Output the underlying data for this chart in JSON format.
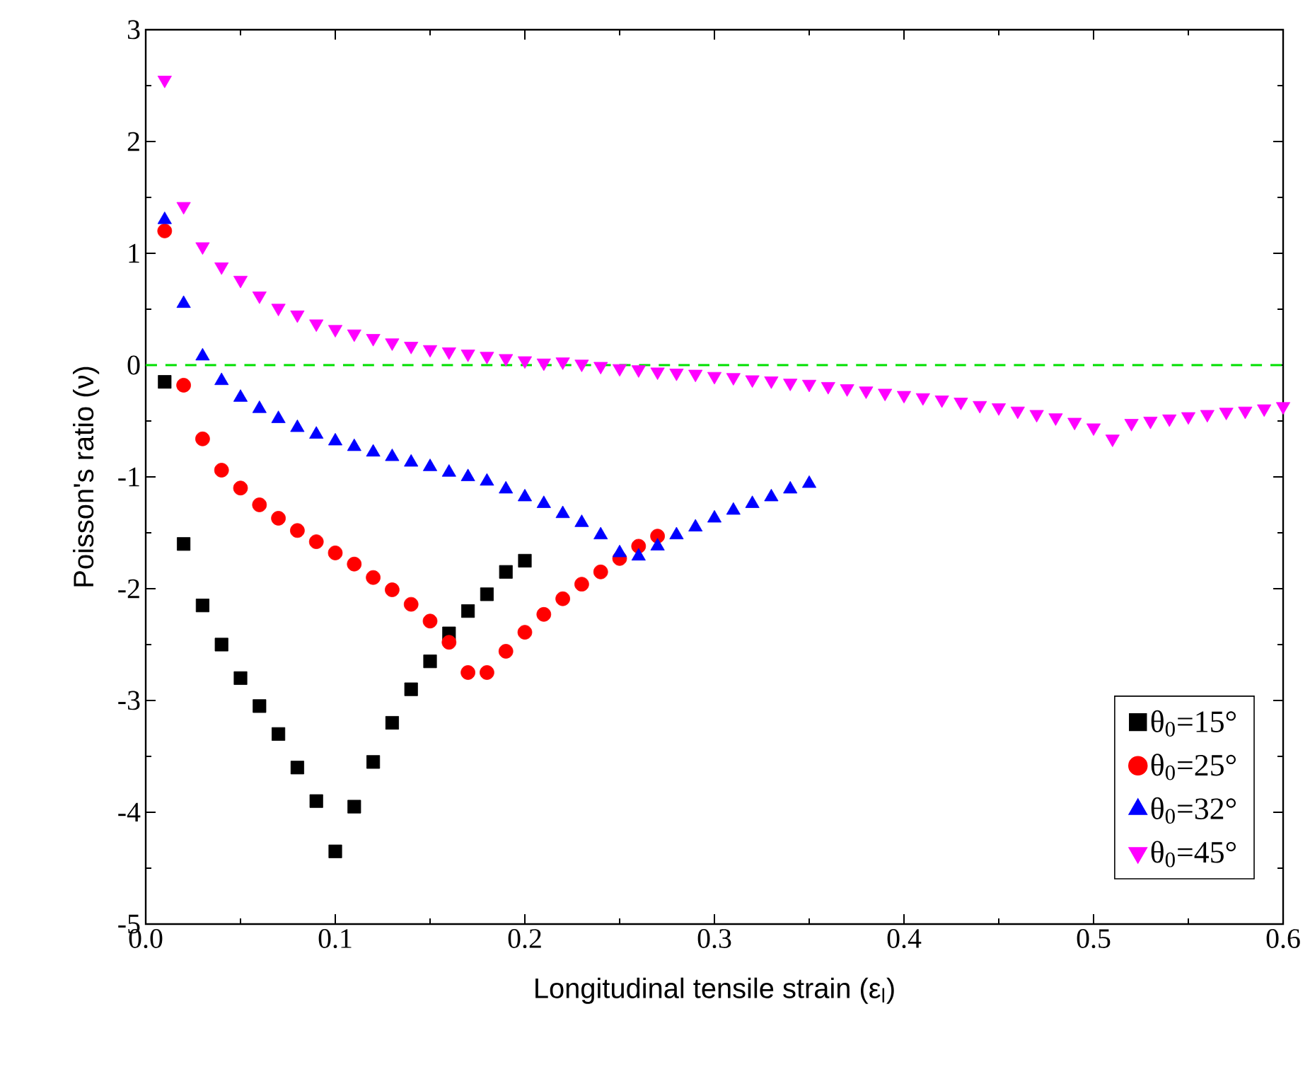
{
  "chart_data": {
    "type": "scatter",
    "xlabel": "Longitudinal tensile strain (ε$_{l}$)",
    "ylabel": "Poisson's ratio (ν)",
    "xlim": [
      0,
      0.6
    ],
    "ylim": [
      -5,
      3
    ],
    "xticks": [
      {
        "value": 0,
        "label": "0.0"
      },
      0.1,
      0.2,
      0.3,
      0.4,
      0.5,
      0.6
    ],
    "yticks": [
      -5,
      -4,
      -3,
      -2,
      -1,
      0,
      1,
      2,
      3
    ],
    "legend": "bottom right",
    "grid": false,
    "ref_lines": [
      {
        "axis": "y",
        "value": 0,
        "color": "#00e000",
        "line_style": "dashed"
      }
    ],
    "series": [
      {
        "name": "θ$_{0}$=15°",
        "color": "#000000",
        "marker": "square",
        "x": [
          0.01,
          0.02,
          0.03,
          0.04,
          0.05,
          0.06,
          0.07,
          0.08,
          0.09,
          0.1,
          0.11,
          0.12,
          0.13,
          0.14,
          0.15,
          0.16,
          0.17,
          0.18,
          0.19,
          0.2
        ],
        "values": [
          -0.15,
          -1.6,
          -2.15,
          -2.5,
          -2.8,
          -3.05,
          -3.3,
          -3.6,
          -3.9,
          -4.35,
          -3.95,
          -3.55,
          -3.2,
          -2.9,
          -2.65,
          -2.4,
          -2.2,
          -2.05,
          -1.85,
          -1.75
        ]
      },
      {
        "name": "θ$_{0}$=25°",
        "color": "#ff0000",
        "marker": "circle",
        "x": [
          0.01,
          0.02,
          0.03,
          0.04,
          0.05,
          0.06,
          0.07,
          0.08,
          0.09,
          0.1,
          0.11,
          0.12,
          0.13,
          0.14,
          0.15,
          0.16,
          0.17,
          0.18,
          0.19,
          0.2,
          0.21,
          0.22,
          0.23,
          0.24,
          0.25,
          0.26,
          0.27
        ],
        "values": [
          1.2,
          -0.18,
          -0.66,
          -0.94,
          -1.1,
          -1.25,
          -1.37,
          -1.48,
          -1.58,
          -1.68,
          -1.78,
          -1.9,
          -2.01,
          -2.14,
          -2.29,
          -2.48,
          -2.75,
          -2.75,
          -2.56,
          -2.39,
          -2.23,
          -2.09,
          -1.96,
          -1.85,
          -1.73,
          -1.62,
          -1.53
        ]
      },
      {
        "name": "θ$_{0}$=32°",
        "color": "#0000ff",
        "marker": "triangle",
        "x": [
          0.01,
          0.02,
          0.03,
          0.04,
          0.05,
          0.06,
          0.07,
          0.08,
          0.09,
          0.1,
          0.11,
          0.12,
          0.13,
          0.14,
          0.15,
          0.16,
          0.17,
          0.18,
          0.19,
          0.2,
          0.21,
          0.22,
          0.23,
          0.24,
          0.25,
          0.26,
          0.27,
          0.28,
          0.29,
          0.3,
          0.31,
          0.32,
          0.33,
          0.34,
          0.35
        ],
        "values": [
          1.3,
          0.55,
          0.08,
          -0.14,
          -0.29,
          -0.39,
          -0.48,
          -0.56,
          -0.62,
          -0.68,
          -0.73,
          -0.78,
          -0.82,
          -0.87,
          -0.91,
          -0.96,
          -1.0,
          -1.04,
          -1.11,
          -1.18,
          -1.24,
          -1.33,
          -1.41,
          -1.52,
          -1.68,
          -1.71,
          -1.62,
          -1.52,
          -1.45,
          -1.37,
          -1.3,
          -1.24,
          -1.18,
          -1.11,
          -1.06
        ]
      },
      {
        "name": "θ$_{0}$=45°",
        "color": "#ff00ff",
        "marker": "triangle-down",
        "x": [
          0.01,
          0.02,
          0.03,
          0.04,
          0.05,
          0.06,
          0.07,
          0.08,
          0.09,
          0.1,
          0.11,
          0.12,
          0.13,
          0.14,
          0.15,
          0.16,
          0.17,
          0.18,
          0.19,
          0.2,
          0.21,
          0.22,
          0.23,
          0.24,
          0.25,
          0.26,
          0.27,
          0.28,
          0.29,
          0.3,
          0.31,
          0.32,
          0.33,
          0.34,
          0.35,
          0.36,
          0.37,
          0.38,
          0.39,
          0.4,
          0.41,
          0.42,
          0.43,
          0.44,
          0.45,
          0.46,
          0.47,
          0.48,
          0.49,
          0.5,
          0.51,
          0.52,
          0.53,
          0.54,
          0.55,
          0.56,
          0.57,
          0.58,
          0.59,
          0.6
        ],
        "values": [
          2.55,
          1.42,
          1.06,
          0.88,
          0.76,
          0.62,
          0.51,
          0.45,
          0.37,
          0.32,
          0.28,
          0.24,
          0.2,
          0.17,
          0.14,
          0.12,
          0.1,
          0.08,
          0.06,
          0.04,
          0.02,
          0.03,
          0.01,
          -0.01,
          -0.03,
          -0.04,
          -0.06,
          -0.07,
          -0.08,
          -0.1,
          -0.11,
          -0.13,
          -0.14,
          -0.16,
          -0.17,
          -0.19,
          -0.21,
          -0.23,
          -0.25,
          -0.27,
          -0.29,
          -0.31,
          -0.33,
          -0.36,
          -0.38,
          -0.41,
          -0.44,
          -0.47,
          -0.51,
          -0.56,
          -0.66,
          -0.52,
          -0.5,
          -0.48,
          -0.46,
          -0.44,
          -0.42,
          -0.41,
          -0.39,
          -0.37
        ]
      }
    ]
  }
}
